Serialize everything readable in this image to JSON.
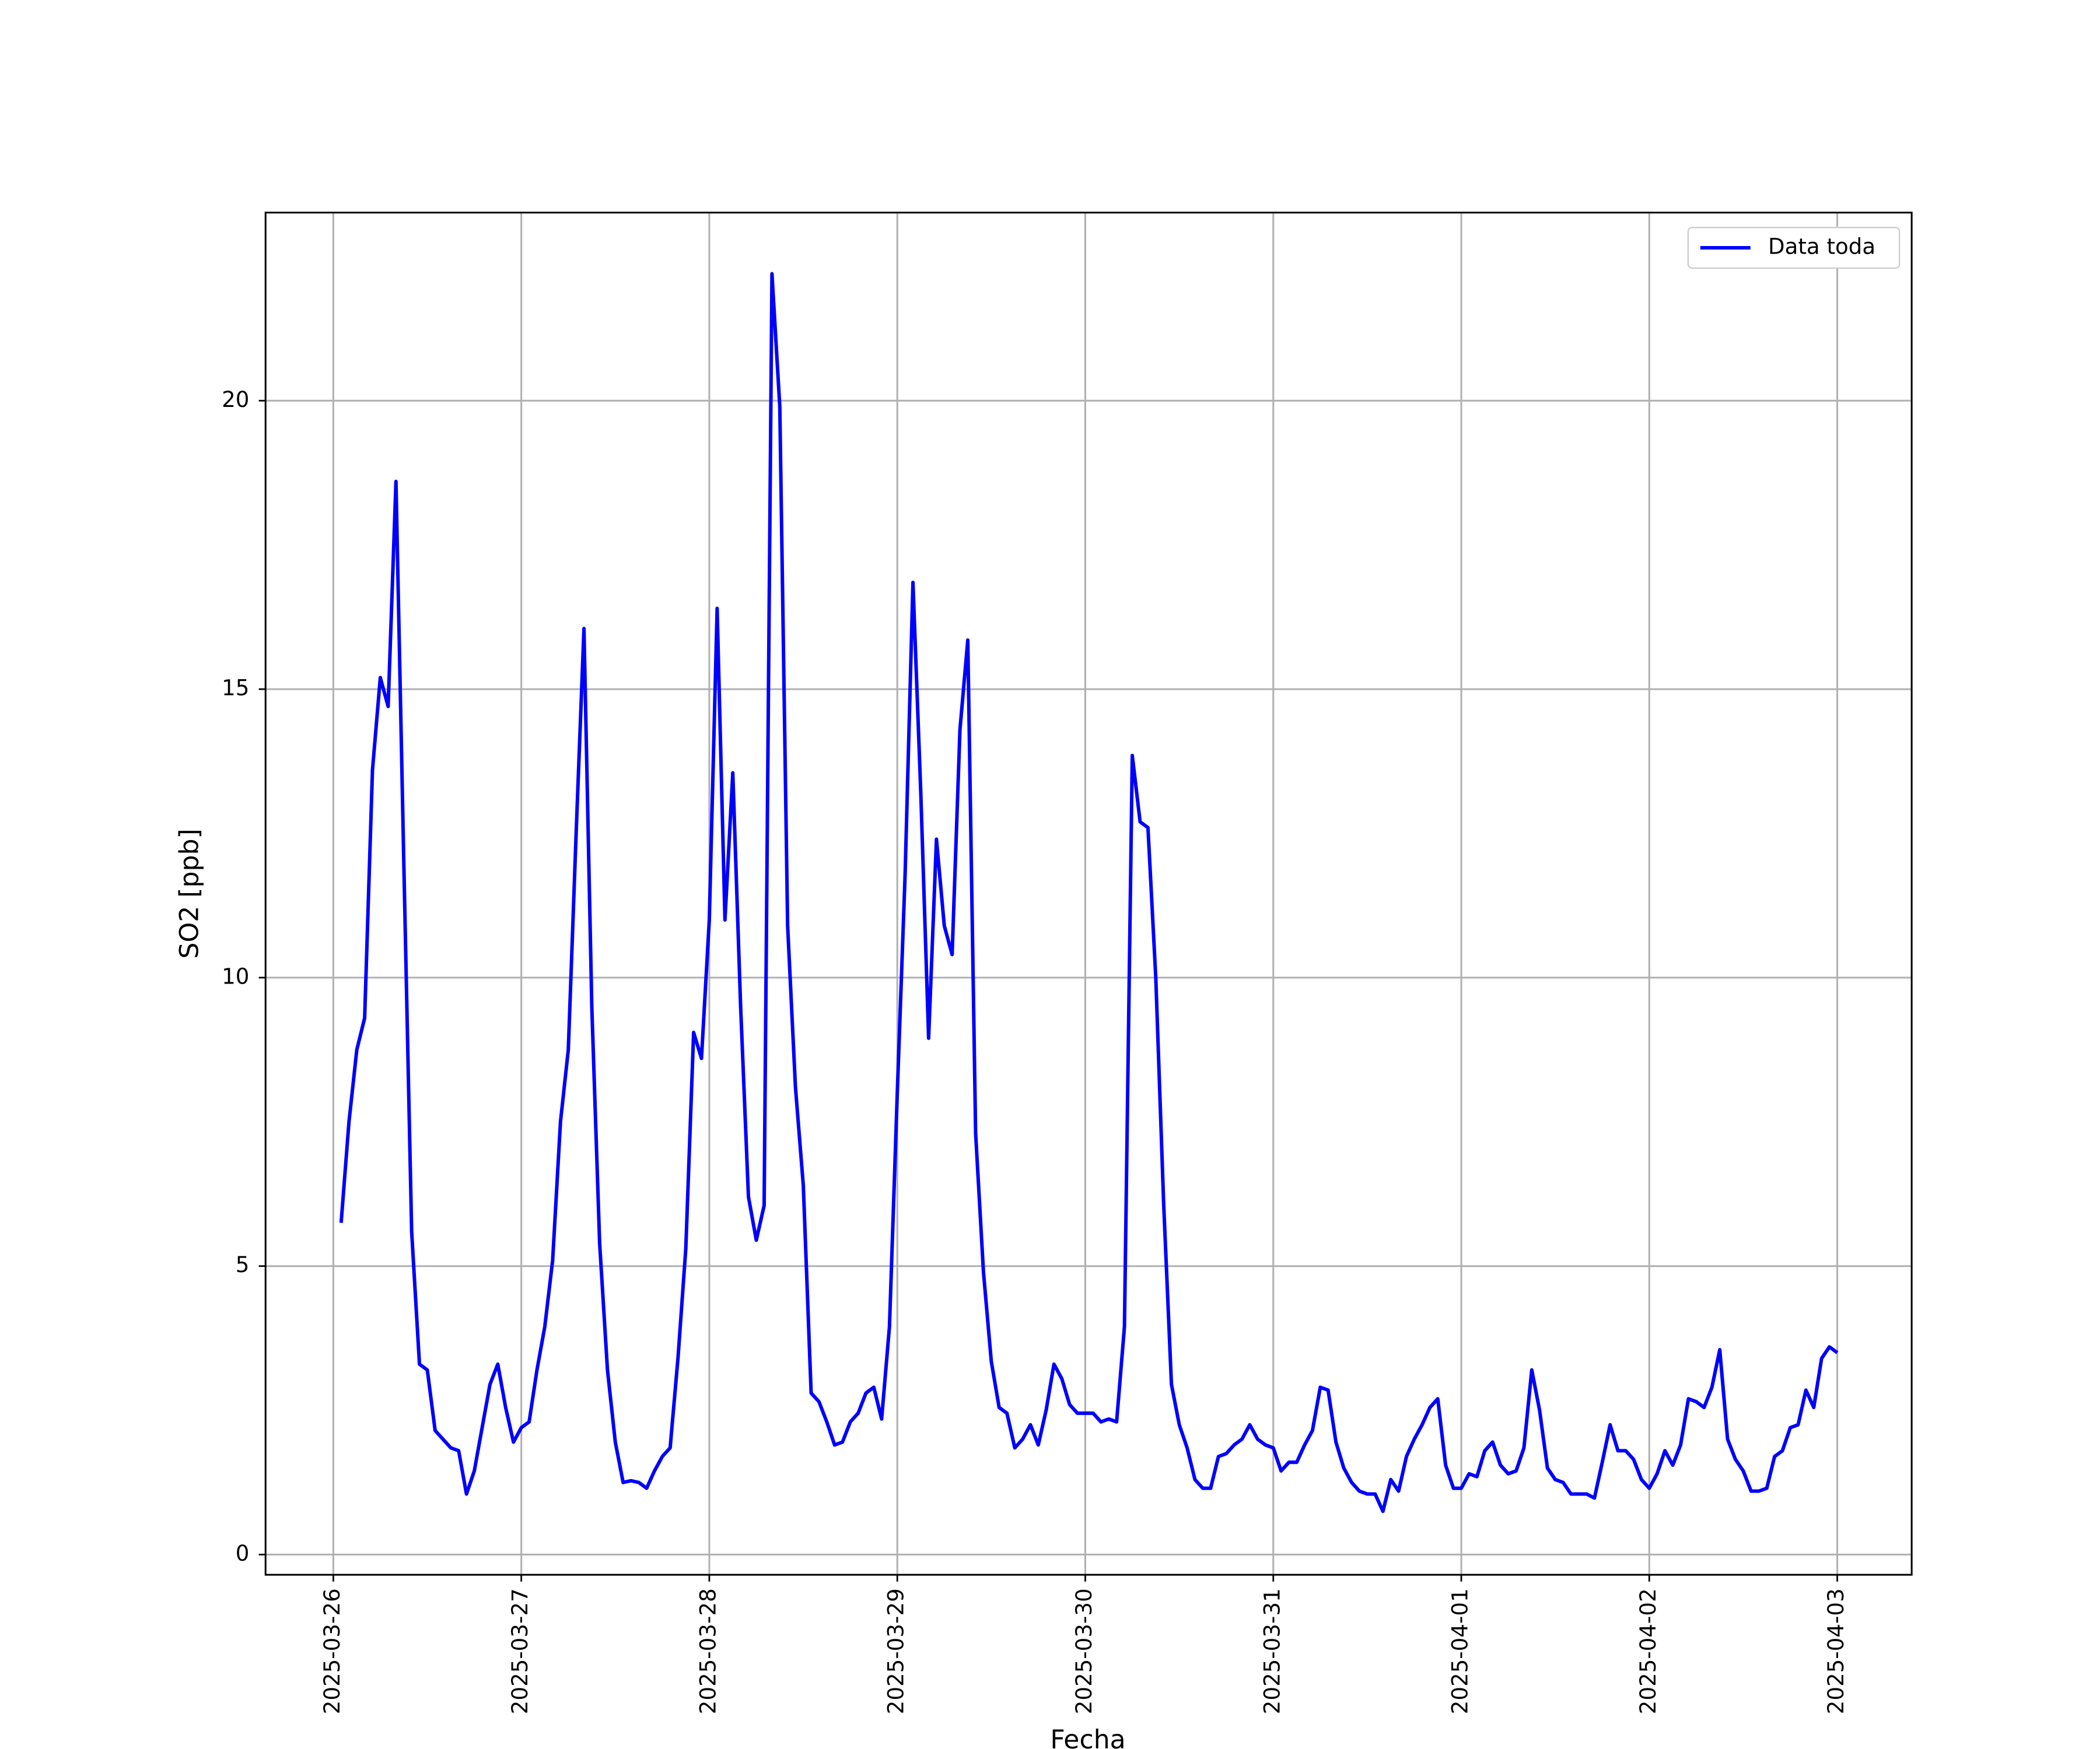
{
  "chart_data": {
    "type": "line",
    "xlabel": "Fecha",
    "ylabel": "SO2 [ppb]",
    "x": [
      1,
      2,
      3,
      4,
      5,
      6,
      7,
      8,
      9,
      10,
      11,
      12,
      13,
      14,
      15,
      16,
      17,
      18,
      19,
      20,
      21,
      22,
      23,
      24,
      25,
      26,
      27,
      28,
      29,
      30,
      31,
      32,
      33,
      34,
      35,
      36,
      37,
      38,
      39,
      40,
      41,
      42,
      43,
      44,
      45,
      46,
      47,
      48,
      49,
      50,
      51,
      52,
      53,
      54,
      55,
      56,
      57,
      58,
      59,
      60,
      61,
      62,
      63,
      64,
      65,
      66,
      67,
      68,
      69,
      70,
      71,
      72,
      73,
      74,
      75,
      76,
      77,
      78,
      79,
      80,
      81,
      82,
      83,
      84,
      85,
      86,
      87,
      88,
      89,
      90,
      91,
      92,
      93,
      94,
      95,
      96,
      97,
      98,
      99,
      100,
      101,
      102,
      103,
      104,
      105,
      106,
      107,
      108,
      109,
      110,
      111,
      112,
      113,
      114,
      115,
      116,
      117,
      118,
      119,
      120,
      121,
      122,
      123,
      124,
      125,
      126,
      127,
      128,
      129,
      130,
      131,
      132,
      133,
      134,
      135,
      136,
      137,
      138,
      139,
      140,
      141,
      142,
      143,
      144,
      145,
      146,
      147,
      148,
      149,
      150,
      151,
      152,
      153,
      154,
      155,
      156,
      157,
      158,
      159,
      160,
      161,
      162,
      163,
      164,
      165,
      166,
      167,
      168,
      169,
      170,
      171,
      172,
      173,
      174,
      175,
      176,
      177,
      178,
      179,
      180,
      181,
      182,
      183,
      184,
      185,
      186,
      187,
      188,
      189,
      190,
      191,
      192
    ],
    "series": [
      {
        "name": "Data toda",
        "color": "#0000ff",
        "values": [
          5.75,
          7.5,
          8.75,
          9.3,
          13.6,
          15.2,
          14.7,
          18.6,
          12.0,
          5.6,
          3.3,
          3.2,
          2.15,
          2.0,
          1.85,
          1.8,
          1.05,
          1.45,
          2.2,
          2.95,
          3.3,
          2.55,
          1.95,
          2.2,
          2.3,
          3.2,
          3.95,
          5.1,
          7.5,
          8.75,
          12.5,
          16.05,
          9.5,
          5.4,
          3.2,
          1.95,
          1.25,
          1.28,
          1.25,
          1.15,
          1.45,
          1.7,
          1.85,
          3.4,
          5.3,
          9.05,
          8.6,
          11.0,
          16.4,
          11.0,
          13.55,
          9.5,
          6.2,
          5.45,
          6.05,
          22.2,
          19.9,
          10.9,
          8.1,
          6.4,
          2.8,
          2.65,
          2.3,
          1.9,
          1.95,
          2.3,
          2.45,
          2.8,
          2.9,
          2.35,
          3.95,
          8.0,
          11.8,
          16.85,
          13.2,
          8.95,
          12.4,
          10.9,
          10.4,
          14.3,
          15.85,
          7.3,
          4.9,
          3.35,
          2.55,
          2.45,
          1.85,
          2.0,
          2.25,
          1.9,
          2.5,
          3.3,
          3.05,
          2.6,
          2.45,
          2.45,
          2.45,
          2.3,
          2.35,
          2.3,
          3.95,
          13.85,
          12.7,
          12.6,
          10.0,
          6.1,
          2.95,
          2.25,
          1.85,
          1.3,
          1.15,
          1.15,
          1.7,
          1.75,
          1.9,
          2.0,
          2.25,
          2.0,
          1.9,
          1.85,
          1.45,
          1.6,
          1.6,
          1.9,
          2.15,
          2.9,
          2.85,
          1.95,
          1.5,
          1.25,
          1.1,
          1.05,
          1.05,
          0.75,
          1.3,
          1.1,
          1.7,
          2.0,
          2.25,
          2.55,
          2.7,
          1.55,
          1.15,
          1.15,
          1.4,
          1.35,
          1.8,
          1.95,
          1.55,
          1.4,
          1.45,
          1.85,
          3.2,
          2.5,
          1.5,
          1.3,
          1.25,
          1.05,
          1.05,
          1.05,
          0.98,
          1.6,
          2.25,
          1.8,
          1.8,
          1.65,
          1.3,
          1.15,
          1.4,
          1.8,
          1.55,
          1.9,
          2.7,
          2.65,
          2.55,
          2.9,
          3.55,
          2.0,
          1.65,
          1.45,
          1.1,
          1.1,
          1.15,
          1.7,
          1.8,
          2.2,
          2.25,
          2.85,
          2.55,
          3.4,
          3.6,
          3.5
        ]
      }
    ],
    "xlim": [
      -8.65,
      201.5
    ],
    "xticks": [
      {
        "value": 0,
        "label": "2025-03-26"
      },
      {
        "value": 24,
        "label": "2025-03-27"
      },
      {
        "value": 48,
        "label": "2025-03-28"
      },
      {
        "value": 72,
        "label": "2025-03-29"
      },
      {
        "value": 96,
        "label": "2025-03-30"
      },
      {
        "value": 120,
        "label": "2025-03-31"
      },
      {
        "value": 144,
        "label": "2025-04-01"
      },
      {
        "value": 168,
        "label": "2025-04-02"
      },
      {
        "value": 192,
        "label": "2025-04-03"
      }
    ],
    "ylim": [
      -0.35,
      23.26
    ],
    "yticks": [
      0,
      5,
      10,
      15,
      20
    ],
    "grid": true,
    "legend": "upper right"
  }
}
